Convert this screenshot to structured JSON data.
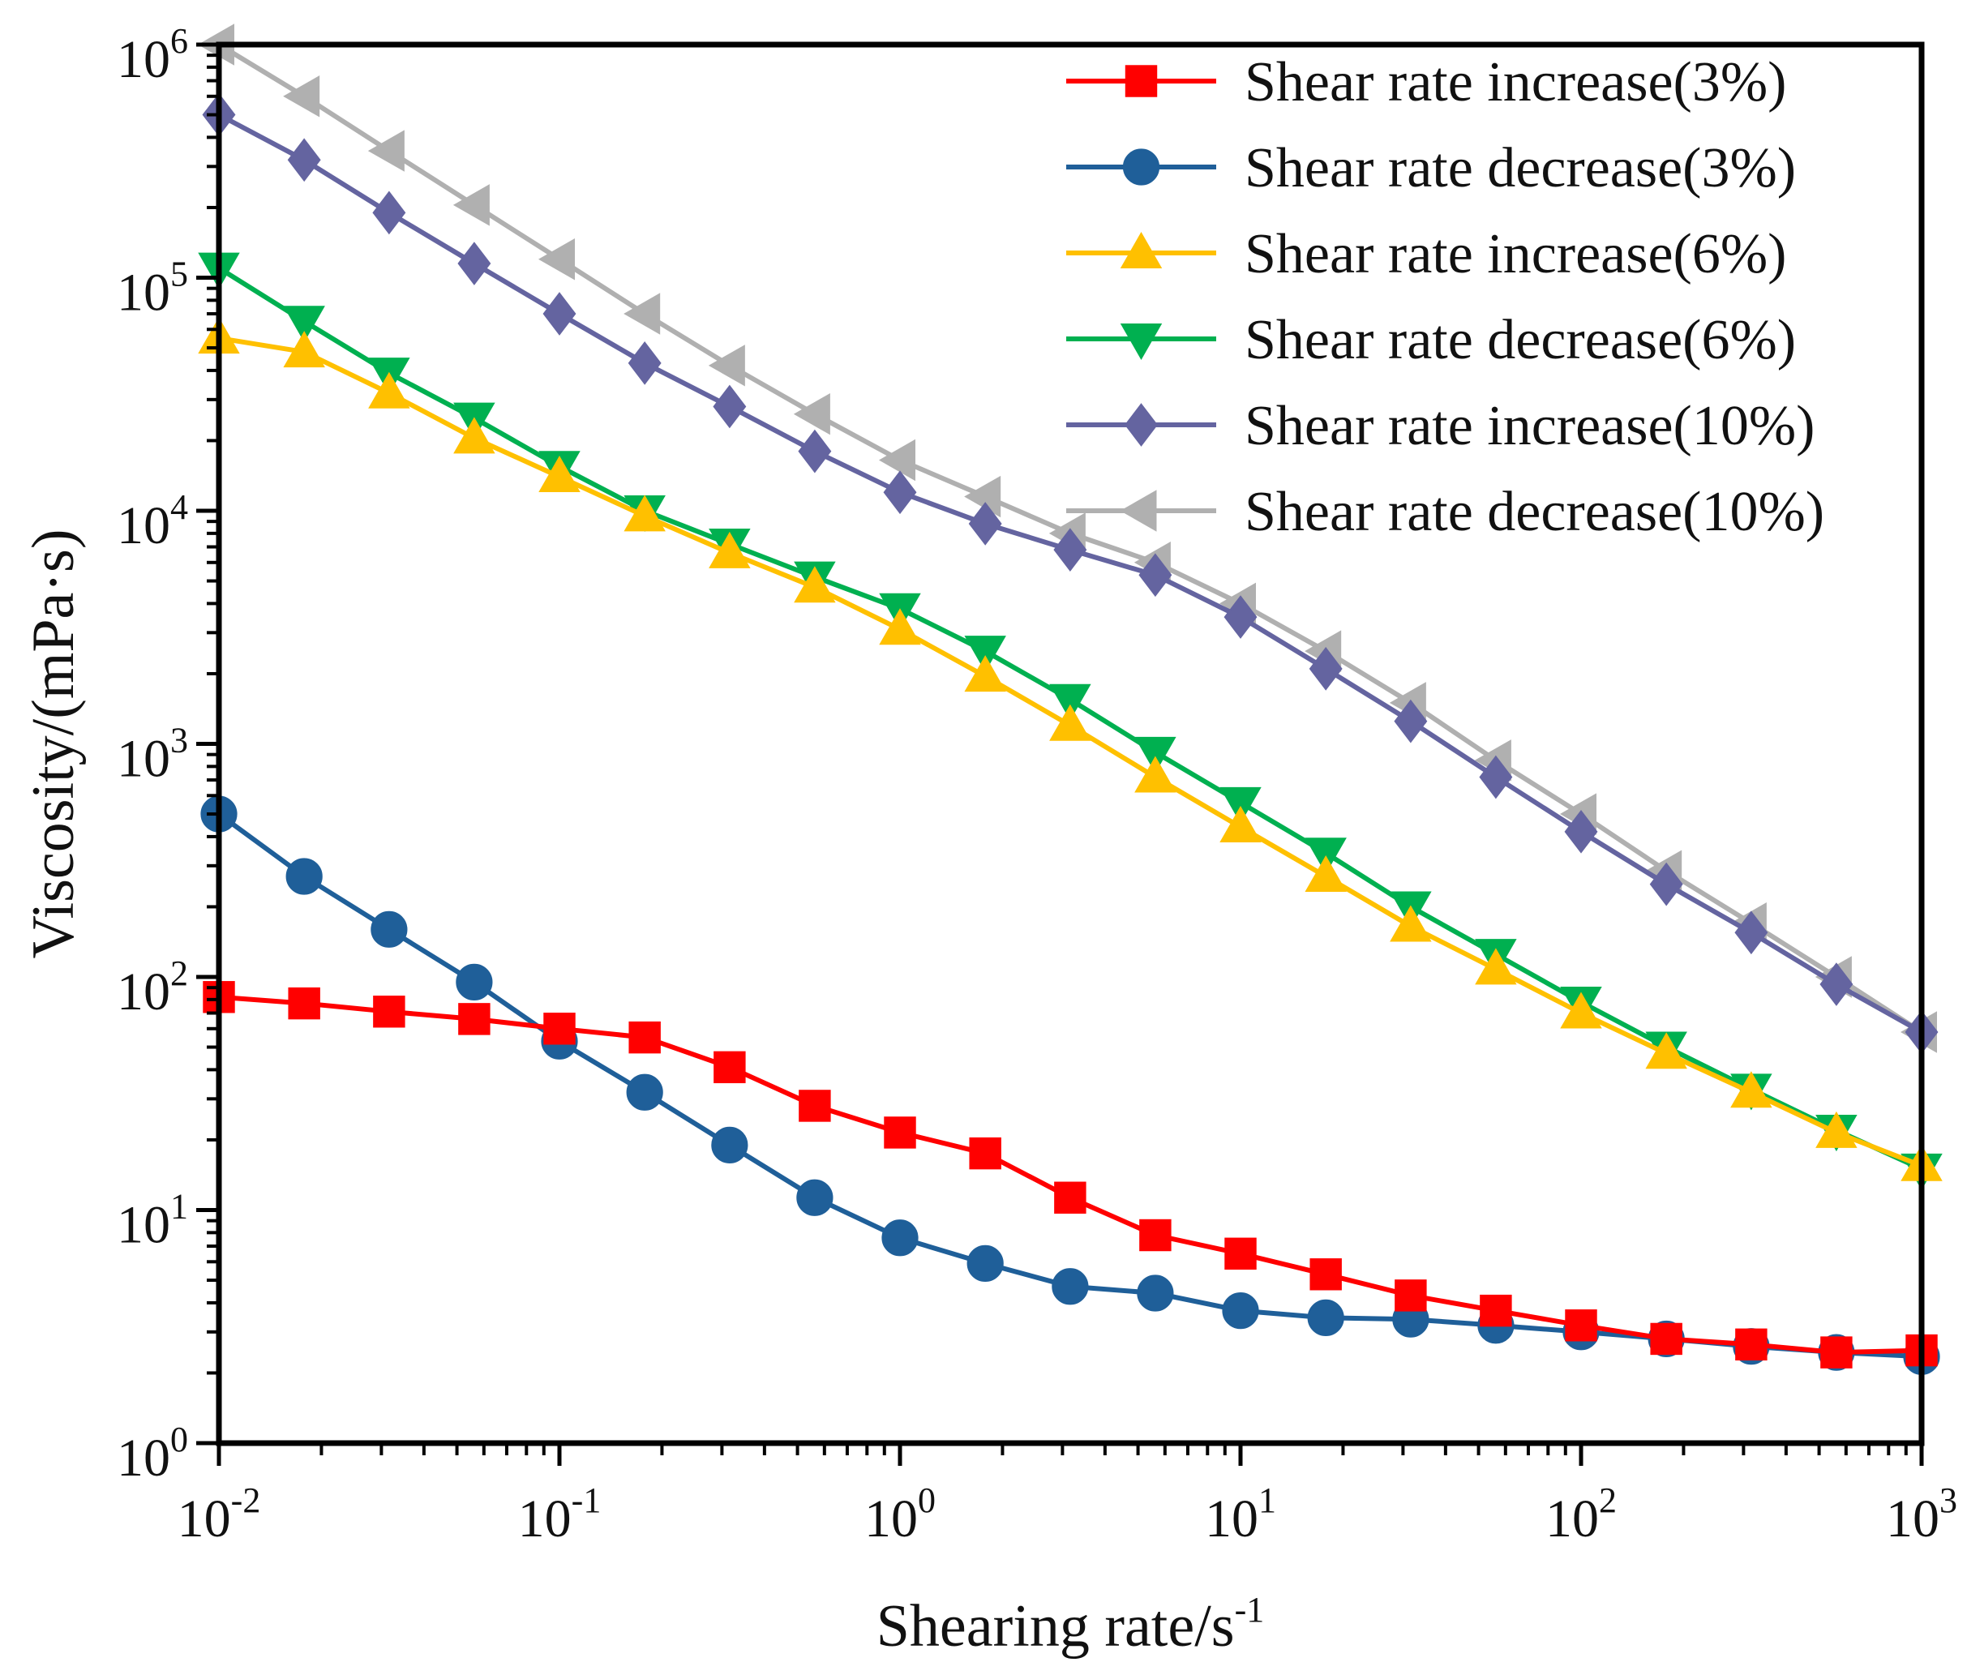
{
  "chart_data": {
    "type": "line",
    "x_scale": "log",
    "y_scale": "log",
    "xlim": [
      0.01,
      1000
    ],
    "ylim": [
      1,
      1000000
    ],
    "xlabel": {
      "base": "Shearing rate/s",
      "sup": "-1"
    },
    "ylabel": "Viscosity/(mPa·s)",
    "x_ticks": [
      {
        "base": "10",
        "exp": "-2",
        "value": 0.01
      },
      {
        "base": "10",
        "exp": "-1",
        "value": 0.1
      },
      {
        "base": "10",
        "exp": "0",
        "value": 1
      },
      {
        "base": "10",
        "exp": "1",
        "value": 10
      },
      {
        "base": "10",
        "exp": "2",
        "value": 100
      },
      {
        "base": "10",
        "exp": "3",
        "value": 1000
      }
    ],
    "y_ticks": [
      {
        "base": "10",
        "exp": "0",
        "value": 1
      },
      {
        "base": "10",
        "exp": "1",
        "value": 10
      },
      {
        "base": "10",
        "exp": "2",
        "value": 100
      },
      {
        "base": "10",
        "exp": "3",
        "value": 1000
      },
      {
        "base": "10",
        "exp": "4",
        "value": 10000
      },
      {
        "base": "10",
        "exp": "5",
        "value": 100000
      },
      {
        "base": "10",
        "exp": "6",
        "value": 1000000
      }
    ],
    "legend_position": "top-right",
    "x": [
      0.01,
      0.0178,
      0.0316,
      0.0562,
      0.1,
      0.178,
      0.316,
      0.562,
      1,
      1.78,
      3.16,
      5.62,
      10,
      17.8,
      31.6,
      56.2,
      100,
      178,
      316,
      562,
      1000
    ],
    "series": [
      {
        "name": "Shear rate increase(3%)",
        "color": "#ff0000",
        "marker": "square",
        "values": [
          82,
          77,
          71,
          66,
          60,
          55,
          41,
          28,
          21.5,
          17.5,
          11.3,
          7.8,
          6.5,
          5.3,
          4.3,
          3.7,
          3.2,
          2.8,
          2.65,
          2.45,
          2.5
        ]
      },
      {
        "name": "Shear rate decrease(3%)",
        "color": "#1f5f99",
        "marker": "circle",
        "values": [
          500,
          270,
          160,
          95,
          53,
          32,
          19,
          11.3,
          7.6,
          5.9,
          4.7,
          4.4,
          3.7,
          3.45,
          3.4,
          3.2,
          3.0,
          2.8,
          2.6,
          2.45,
          2.35
        ]
      },
      {
        "name": "Shear rate increase(6%)",
        "color": "#ffc000",
        "marker": "triangle-up",
        "values": [
          55000,
          48000,
          32000,
          20500,
          14000,
          9500,
          6600,
          4700,
          3100,
          1950,
          1200,
          720,
          440,
          270,
          165,
          108,
          70,
          47,
          32,
          21.5,
          15.5
        ]
      },
      {
        "name": "Shear rate decrease(6%)",
        "color": "#00b050",
        "marker": "triangle-down",
        "values": [
          110000,
          65000,
          39000,
          25000,
          15500,
          10000,
          7200,
          5200,
          3800,
          2500,
          1550,
          920,
          560,
          340,
          200,
          125,
          78,
          50,
          33,
          22,
          15
        ]
      },
      {
        "name": "Shear rate increase(10%)",
        "color": "#6464a0",
        "marker": "diamond",
        "values": [
          500000,
          320000,
          190000,
          115000,
          70000,
          43000,
          28000,
          18000,
          12000,
          8800,
          6800,
          5300,
          3500,
          2100,
          1250,
          720,
          420,
          250,
          155,
          93,
          58
        ]
      },
      {
        "name": "Shear rate decrease(10%)",
        "color": "#b0b0b0",
        "marker": "triangle-left",
        "values": [
          1000000,
          600000,
          350000,
          205000,
          120000,
          70000,
          42000,
          26000,
          16500,
          11500,
          8000,
          6000,
          4000,
          2500,
          1500,
          850,
          500,
          285,
          170,
          100,
          58
        ]
      }
    ]
  }
}
